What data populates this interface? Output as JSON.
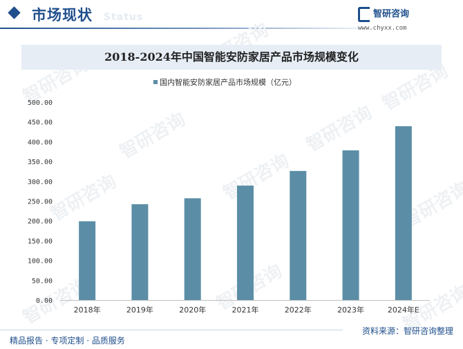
{
  "header": {
    "title": "市场现状",
    "ghost_text": "Status"
  },
  "logo": {
    "name": "智研咨询",
    "url": "www.chyxx.com"
  },
  "watermark": {
    "text": "智研咨询"
  },
  "chart_data": {
    "type": "bar",
    "title": "2018-2024年中国智能安防家居产品市场规模变化",
    "categories": [
      "2018年",
      "2019年",
      "2020年",
      "2021年",
      "2022年",
      "2023年",
      "2024年E"
    ],
    "series": [
      {
        "name": "国内智能安防家居产品市场规模（亿元）",
        "values": [
          199,
          242,
          257,
          289,
          326,
          378,
          439
        ],
        "color": "#5b8ea6"
      }
    ],
    "ylim": [
      0,
      500
    ],
    "yticks": [
      0,
      50,
      100,
      150,
      200,
      250,
      300,
      350,
      400,
      450,
      500
    ],
    "ytick_labels": [
      "0.00",
      "50.00",
      "100.00",
      "150.00",
      "200.00",
      "250.00",
      "300.00",
      "350.00",
      "400.00",
      "450.00",
      "500.00"
    ],
    "grid": false,
    "legend_position": "top-center"
  },
  "footer": {
    "left": "精品报告 · 专项定制 · 品质服务",
    "right": "资料来源：智研咨询整理"
  },
  "colors": {
    "brand": "#1f4e8c",
    "bar": "#5b8ea6",
    "title_band": "#e6edf5"
  }
}
